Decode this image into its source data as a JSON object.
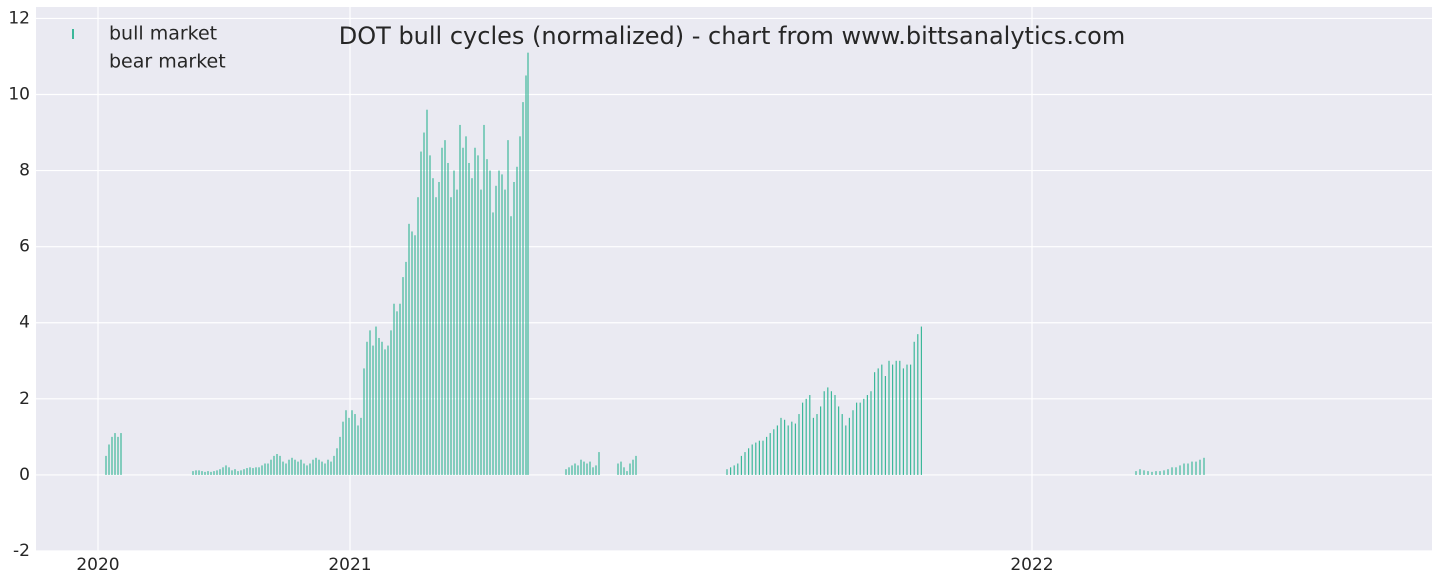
{
  "chart_data": {
    "type": "bar",
    "title": "DOT bull cycles (normalized)  - chart from www.bittsanalytics.com",
    "xlim": [
      0,
      1396
    ],
    "xticks": [
      {
        "value": 62,
        "label": "2020"
      },
      {
        "value": 314,
        "label": "2021"
      },
      {
        "value": 996,
        "label": "2022"
      }
    ],
    "ylim": [
      -2,
      12.3
    ],
    "yticks": [
      -2,
      0,
      2,
      4,
      6,
      8,
      10,
      12
    ],
    "grid": true,
    "legend": "upper left",
    "series": [
      {
        "name": "bull market",
        "color": "#3cb89a",
        "x": [
          70,
          73,
          76,
          79,
          82,
          85,
          157,
          160,
          163,
          166,
          169,
          172,
          175,
          178,
          181,
          184,
          187,
          190,
          193,
          196,
          199,
          202,
          205,
          208,
          211,
          214,
          217,
          220,
          223,
          226,
          229,
          232,
          235,
          238,
          241,
          244,
          247,
          250,
          253,
          256,
          259,
          262,
          265,
          268,
          271,
          274,
          277,
          280,
          283,
          286,
          289,
          292,
          295,
          298,
          301,
          304,
          307,
          310,
          313,
          316,
          319,
          322,
          325,
          328,
          331,
          334,
          337,
          340,
          343,
          346,
          349,
          352,
          355,
          358,
          361,
          364,
          367,
          370,
          373,
          376,
          379,
          382,
          385,
          388,
          391,
          394,
          397,
          400,
          403,
          406,
          409,
          412,
          415,
          418,
          421,
          424,
          427,
          430,
          433,
          436,
          439,
          442,
          445,
          448,
          451,
          454,
          457,
          460,
          463,
          466,
          469,
          472,
          475,
          478,
          481,
          484,
          487,
          490,
          492,
          530,
          533,
          536,
          539,
          542,
          545,
          548,
          551,
          554,
          557,
          560,
          563,
          582,
          585,
          588,
          591,
          594,
          597,
          600,
          691,
          694.6,
          698.2,
          701.8,
          705.4,
          709,
          712.6,
          716.2,
          719.8,
          723.4,
          727,
          730.6,
          734.2,
          737.8,
          741.4,
          745,
          748.6,
          752.2,
          755.8,
          759.4,
          763,
          766.6,
          770.2,
          773.8,
          777.4,
          781,
          784.6,
          788.2,
          791.8,
          795.4,
          799,
          802.6,
          806.2,
          809.8,
          813.4,
          817,
          820.6,
          824.2,
          827.8,
          831.4,
          835,
          838.6,
          842.2,
          845.8,
          849.4,
          853,
          856.6,
          860.2,
          863.8,
          867.4,
          871,
          874.6,
          878.2,
          881.8,
          885.4,
          1100,
          1104,
          1108,
          1112,
          1116,
          1120,
          1124,
          1128,
          1132,
          1136,
          1140,
          1144,
          1148,
          1152,
          1156,
          1160,
          1164,
          1168
        ],
        "values": [
          0.5,
          0.8,
          1.0,
          1.1,
          1.0,
          1.1,
          0.1,
          0.12,
          0.12,
          0.1,
          0.08,
          0.1,
          0.08,
          0.1,
          0.12,
          0.15,
          0.2,
          0.25,
          0.2,
          0.12,
          0.15,
          0.1,
          0.12,
          0.15,
          0.18,
          0.2,
          0.18,
          0.2,
          0.2,
          0.25,
          0.3,
          0.3,
          0.4,
          0.5,
          0.55,
          0.5,
          0.35,
          0.3,
          0.4,
          0.45,
          0.4,
          0.35,
          0.4,
          0.3,
          0.25,
          0.3,
          0.4,
          0.45,
          0.4,
          0.35,
          0.3,
          0.4,
          0.35,
          0.5,
          0.7,
          1.0,
          1.4,
          1.7,
          1.5,
          1.7,
          1.6,
          1.3,
          1.5,
          2.8,
          3.5,
          3.8,
          3.4,
          3.9,
          3.6,
          3.5,
          3.3,
          3.4,
          3.8,
          4.5,
          4.3,
          4.5,
          5.2,
          5.6,
          6.6,
          6.4,
          6.3,
          7.3,
          8.5,
          9.0,
          9.6,
          8.4,
          7.8,
          7.3,
          7.7,
          8.6,
          8.8,
          8.2,
          7.3,
          8.0,
          7.5,
          9.2,
          8.6,
          8.9,
          8.2,
          7.8,
          8.6,
          8.4,
          7.5,
          9.2,
          8.3,
          8.0,
          6.9,
          7.6,
          8.0,
          7.9,
          7.5,
          8.8,
          6.8,
          7.7,
          8.1,
          8.9,
          9.8,
          10.5,
          11.1,
          0.15,
          0.2,
          0.25,
          0.3,
          0.25,
          0.4,
          0.35,
          0.3,
          0.35,
          0.2,
          0.25,
          0.6,
          0.3,
          0.35,
          0.2,
          0.1,
          0.3,
          0.4,
          0.5,
          0.15,
          0.2,
          0.25,
          0.3,
          0.5,
          0.6,
          0.7,
          0.8,
          0.85,
          0.9,
          0.9,
          1.0,
          1.1,
          1.2,
          1.3,
          1.5,
          1.45,
          1.3,
          1.4,
          1.35,
          1.6,
          1.9,
          2.0,
          2.1,
          1.5,
          1.6,
          1.8,
          2.2,
          2.3,
          2.2,
          2.1,
          1.8,
          1.6,
          1.3,
          1.5,
          1.7,
          1.9,
          1.9,
          2.0,
          2.1,
          2.2,
          2.7,
          2.8,
          2.9,
          2.6,
          3.0,
          2.9,
          3.0,
          3.0,
          2.8,
          2.9,
          2.9,
          3.5,
          3.7,
          3.9,
          0.1,
          0.15,
          0.12,
          0.1,
          0.08,
          0.1,
          0.1,
          0.12,
          0.15,
          0.2,
          0.2,
          0.25,
          0.3,
          0.3,
          0.35,
          0.35,
          0.4,
          0.45
        ]
      },
      {
        "name": "bear market",
        "color": "#eaeaf2",
        "x": [],
        "values": []
      }
    ]
  }
}
